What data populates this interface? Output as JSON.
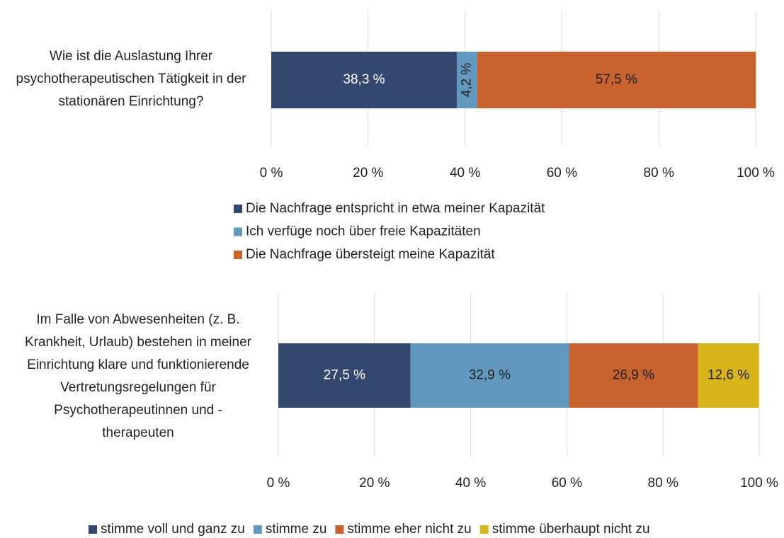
{
  "chart_data": [
    {
      "type": "stacked_bar_horizontal",
      "categories": [
        "Wie ist die Auslastung Ihrer psychotherapeutischen Tätigkeit in der stationären Einrichtung?"
      ],
      "series": [
        {
          "name": "Die Nachfrage entspricht in etwa meiner Kapazität",
          "color": "#34476e",
          "values": [
            38.3
          ],
          "value_labels": [
            "38,3 %"
          ]
        },
        {
          "name": "Ich verfüge noch über freie Kapazitäten",
          "color": "#6399bf",
          "values": [
            4.2
          ],
          "value_labels": [
            "4,2 %"
          ]
        },
        {
          "name": "Die Nachfrage übersteigt meine Kapazität",
          "color": "#c8622f",
          "values": [
            57.5
          ],
          "value_labels": [
            "57,5 %"
          ]
        }
      ],
      "xlim": [
        0,
        100
      ],
      "xticks": [
        {
          "value": 0,
          "label": "0 %"
        },
        {
          "value": 20,
          "label": "20 %"
        },
        {
          "value": 40,
          "label": "40 %"
        },
        {
          "value": 60,
          "label": "60 %"
        },
        {
          "value": 80,
          "label": "80 %"
        },
        {
          "value": 100,
          "label": "100 %"
        }
      ],
      "grid": true,
      "legend": "bottom"
    },
    {
      "type": "stacked_bar_horizontal",
      "categories": [
        "Im Falle von Abwesenheiten (z. B. Krankheit, Urlaub) bestehen in meiner Einrichtung klare und funktionierende Vertretungsregelungen für Psychotherapeutinnen und -therapeuten"
      ],
      "series": [
        {
          "name": "stimme voll und ganz zu",
          "color": "#34476e",
          "values": [
            27.5
          ],
          "value_labels": [
            "27,5 %"
          ]
        },
        {
          "name": "stimme zu",
          "color": "#6399bf",
          "values": [
            32.9
          ],
          "value_labels": [
            "32,9 %"
          ]
        },
        {
          "name": "stimme eher nicht zu",
          "color": "#c8622f",
          "values": [
            26.9
          ],
          "value_labels": [
            "26,9 %"
          ]
        },
        {
          "name": "stimme überhaupt nicht zu",
          "color": "#d8b41b",
          "values": [
            12.6
          ],
          "value_labels": [
            "12,6 %"
          ]
        }
      ],
      "xlim": [
        0,
        100
      ],
      "xticks": [
        {
          "value": 0,
          "label": "0 %"
        },
        {
          "value": 20,
          "label": "20 %"
        },
        {
          "value": 40,
          "label": "40 %"
        },
        {
          "value": 60,
          "label": "60 %"
        },
        {
          "value": 80,
          "label": "80 %"
        },
        {
          "value": 100,
          "label": "100 %"
        }
      ],
      "grid": true,
      "legend": "bottom"
    }
  ]
}
